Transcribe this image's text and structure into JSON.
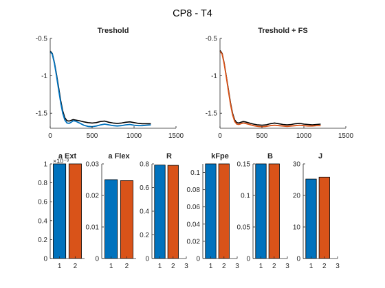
{
  "figure": {
    "title": "CP8 - T4",
    "colors": {
      "blue": "#0072BD",
      "orange": "#D95319",
      "black": "#000000",
      "axis": "#262626",
      "background": "#FFFFFF"
    }
  },
  "chart_data": [
    {
      "type": "line",
      "title": "Treshold",
      "xlim": [
        0,
        1500
      ],
      "ylim": [
        -1.7,
        -0.5
      ],
      "xticks": [
        "0",
        "500",
        "1000",
        "1500"
      ],
      "yticks": [
        "-0.5",
        "-1",
        "-1.5"
      ],
      "xtick_values": [
        0,
        500,
        1000,
        1500
      ],
      "ytick_values": [
        -0.5,
        -1,
        -1.5
      ],
      "series": [
        {
          "color": "black",
          "x": [
            0,
            25,
            50,
            75,
            100,
            125,
            150,
            175,
            200,
            225,
            250,
            275,
            300,
            350,
            400,
            450,
            500,
            550,
            600,
            650,
            700,
            750,
            800,
            850,
            900,
            950,
            1000,
            1050,
            1100,
            1150,
            1200
          ],
          "y": [
            -0.67,
            -0.7,
            -0.82,
            -0.98,
            -1.15,
            -1.33,
            -1.47,
            -1.56,
            -1.6,
            -1.605,
            -1.595,
            -1.585,
            -1.59,
            -1.6,
            -1.615,
            -1.625,
            -1.63,
            -1.625,
            -1.61,
            -1.605,
            -1.62,
            -1.63,
            -1.635,
            -1.63,
            -1.62,
            -1.615,
            -1.625,
            -1.635,
            -1.64,
            -1.64,
            -1.64
          ]
        },
        {
          "color": "blue",
          "x": [
            0,
            25,
            50,
            75,
            100,
            125,
            150,
            175,
            200,
            225,
            250,
            275,
            300,
            350,
            400,
            450,
            500,
            550,
            600,
            650,
            700,
            750,
            800,
            850,
            900,
            950,
            1000,
            1050,
            1100,
            1150,
            1200
          ],
          "y": [
            -0.68,
            -0.71,
            -0.83,
            -1.0,
            -1.18,
            -1.36,
            -1.5,
            -1.59,
            -1.63,
            -1.635,
            -1.62,
            -1.6,
            -1.605,
            -1.63,
            -1.66,
            -1.675,
            -1.68,
            -1.67,
            -1.655,
            -1.645,
            -1.655,
            -1.665,
            -1.67,
            -1.665,
            -1.655,
            -1.65,
            -1.66,
            -1.665,
            -1.665,
            -1.66,
            -1.655
          ]
        }
      ]
    },
    {
      "type": "line",
      "title": "Treshold + FS",
      "xlim": [
        0,
        1500
      ],
      "ylim": [
        -1.7,
        -0.5
      ],
      "xticks": [
        "0",
        "500",
        "1000",
        "1500"
      ],
      "yticks": [
        "-0.5",
        "-1",
        "-1.5"
      ],
      "xtick_values": [
        0,
        500,
        1000,
        1500
      ],
      "ytick_values": [
        -0.5,
        -1,
        -1.5
      ],
      "series": [
        {
          "color": "black",
          "x": [
            0,
            25,
            50,
            75,
            100,
            125,
            150,
            175,
            200,
            225,
            250,
            275,
            300,
            350,
            400,
            450,
            500,
            550,
            600,
            650,
            700,
            750,
            800,
            850,
            900,
            950,
            1000,
            1050,
            1100,
            1150,
            1200
          ],
          "y": [
            -0.66,
            -0.7,
            -0.83,
            -1.0,
            -1.18,
            -1.36,
            -1.5,
            -1.59,
            -1.625,
            -1.63,
            -1.62,
            -1.61,
            -1.615,
            -1.63,
            -1.645,
            -1.655,
            -1.66,
            -1.655,
            -1.64,
            -1.63,
            -1.64,
            -1.65,
            -1.655,
            -1.65,
            -1.64,
            -1.635,
            -1.645,
            -1.65,
            -1.655,
            -1.65,
            -1.645
          ]
        },
        {
          "color": "orange",
          "x": [
            0,
            25,
            50,
            75,
            100,
            125,
            150,
            175,
            200,
            225,
            250,
            275,
            300,
            350,
            400,
            450,
            500,
            550,
            600,
            650,
            700,
            750,
            800,
            850,
            900,
            950,
            1000,
            1050,
            1100,
            1150,
            1200
          ],
          "y": [
            -0.67,
            -0.71,
            -0.84,
            -1.01,
            -1.2,
            -1.38,
            -1.52,
            -1.61,
            -1.645,
            -1.65,
            -1.64,
            -1.63,
            -1.635,
            -1.65,
            -1.665,
            -1.675,
            -1.68,
            -1.675,
            -1.665,
            -1.66,
            -1.665,
            -1.67,
            -1.675,
            -1.67,
            -1.665,
            -1.66,
            -1.665,
            -1.67,
            -1.67,
            -1.665,
            -1.665
          ]
        }
      ]
    },
    {
      "type": "bar",
      "title": "a Ext",
      "ylim": [
        0,
        1
      ],
      "yticks": [
        "0",
        "0.2",
        "0.4",
        "0.6",
        "0.8",
        "1"
      ],
      "ytick_values": [
        0,
        0.2,
        0.4,
        0.6,
        0.8,
        1
      ],
      "exponent_label": "×10⁻³",
      "xlim": [
        0.4,
        2.6
      ],
      "xticks": [
        "1",
        "2"
      ],
      "xtick_values": [
        1,
        2
      ],
      "categories": [
        "1",
        "2"
      ],
      "values": [
        1,
        1
      ],
      "colors": [
        "blue",
        "orange"
      ]
    },
    {
      "type": "bar",
      "title": "a Flex",
      "ylim": [
        0,
        0.03
      ],
      "yticks": [
        "0",
        "0.01",
        "0.02",
        "0.03"
      ],
      "ytick_values": [
        0,
        0.01,
        0.02,
        0.03
      ],
      "xlim": [
        0.4,
        2.6
      ],
      "xticks": [
        "1",
        "2"
      ],
      "xtick_values": [
        1,
        2
      ],
      "categories": [
        "1",
        "2"
      ],
      "values": [
        0.025,
        0.0247
      ],
      "colors": [
        "blue",
        "orange"
      ]
    },
    {
      "type": "bar",
      "title": "R",
      "ylim": [
        0,
        0.8
      ],
      "yticks": [
        "0",
        "0.2",
        "0.4",
        "0.6",
        "0.8"
      ],
      "ytick_values": [
        0,
        0.2,
        0.4,
        0.6,
        0.8
      ],
      "xlim": [
        0.4,
        3
      ],
      "xticks": [
        "1",
        "2",
        "3"
      ],
      "xtick_values": [
        1,
        2,
        3
      ],
      "categories": [
        "1",
        "2"
      ],
      "values": [
        0.79,
        0.788
      ],
      "colors": [
        "blue",
        "orange"
      ]
    },
    {
      "type": "bar",
      "title": "kFpe",
      "ylim": [
        0,
        0.11
      ],
      "yticks": [
        "0",
        "0.02",
        "0.04",
        "0.06",
        "0.08",
        "0.1"
      ],
      "ytick_values": [
        0,
        0.02,
        0.04,
        0.06,
        0.08,
        0.1
      ],
      "xlim": [
        0.4,
        3
      ],
      "xticks": [
        "1",
        "2",
        "3"
      ],
      "xtick_values": [
        1,
        2,
        3
      ],
      "categories": [
        "1",
        "2"
      ],
      "values": [
        0.11,
        0.11
      ],
      "colors": [
        "blue",
        "orange"
      ]
    },
    {
      "type": "bar",
      "title": "B",
      "ylim": [
        0,
        0.15
      ],
      "yticks": [
        "0",
        "0.05",
        "0.1",
        "0.15"
      ],
      "ytick_values": [
        0,
        0.05,
        0.1,
        0.15
      ],
      "xlim": [
        0.4,
        3
      ],
      "xticks": [
        "1",
        "2",
        "3"
      ],
      "xtick_values": [
        1,
        2,
        3
      ],
      "categories": [
        "1",
        "2"
      ],
      "values": [
        0.15,
        0.15
      ],
      "colors": [
        "blue",
        "orange"
      ]
    },
    {
      "type": "bar",
      "title": "J",
      "ylim": [
        0,
        30
      ],
      "yticks": [
        "0",
        "10",
        "20",
        "30"
      ],
      "ytick_values": [
        0,
        10,
        20,
        30
      ],
      "xlim": [
        0.4,
        3
      ],
      "xticks": [
        "1",
        "2",
        "3"
      ],
      "xtick_values": [
        1,
        2,
        3
      ],
      "categories": [
        "1",
        "2"
      ],
      "values": [
        25.2,
        25.8
      ],
      "colors": [
        "blue",
        "orange"
      ]
    }
  ]
}
